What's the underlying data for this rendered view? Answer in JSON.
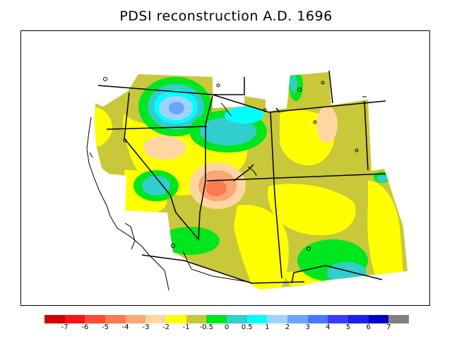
{
  "title": "PDSI reconstruction A.D. 1696",
  "legend": {
    "colors": [
      "#d40000",
      "#f21616",
      "#fc4a34",
      "#fb7a4e",
      "#f9a775",
      "#ffd6a3",
      "#ffff00",
      "#c8c83a",
      "#00e61e",
      "#32cdcd",
      "#00ffff",
      "#a0d2ff",
      "#6aa6ff",
      "#4a78ff",
      "#3a3aff",
      "#1e1ee6",
      "#0000c8",
      "#808080"
    ],
    "tick_labels": [
      "-7",
      "-6",
      "-5",
      "-4",
      "-3",
      "-2",
      "-1",
      "-0.5",
      "0",
      "0.5",
      "1",
      "2",
      "3",
      "4",
      "5",
      "6",
      "7"
    ]
  }
}
